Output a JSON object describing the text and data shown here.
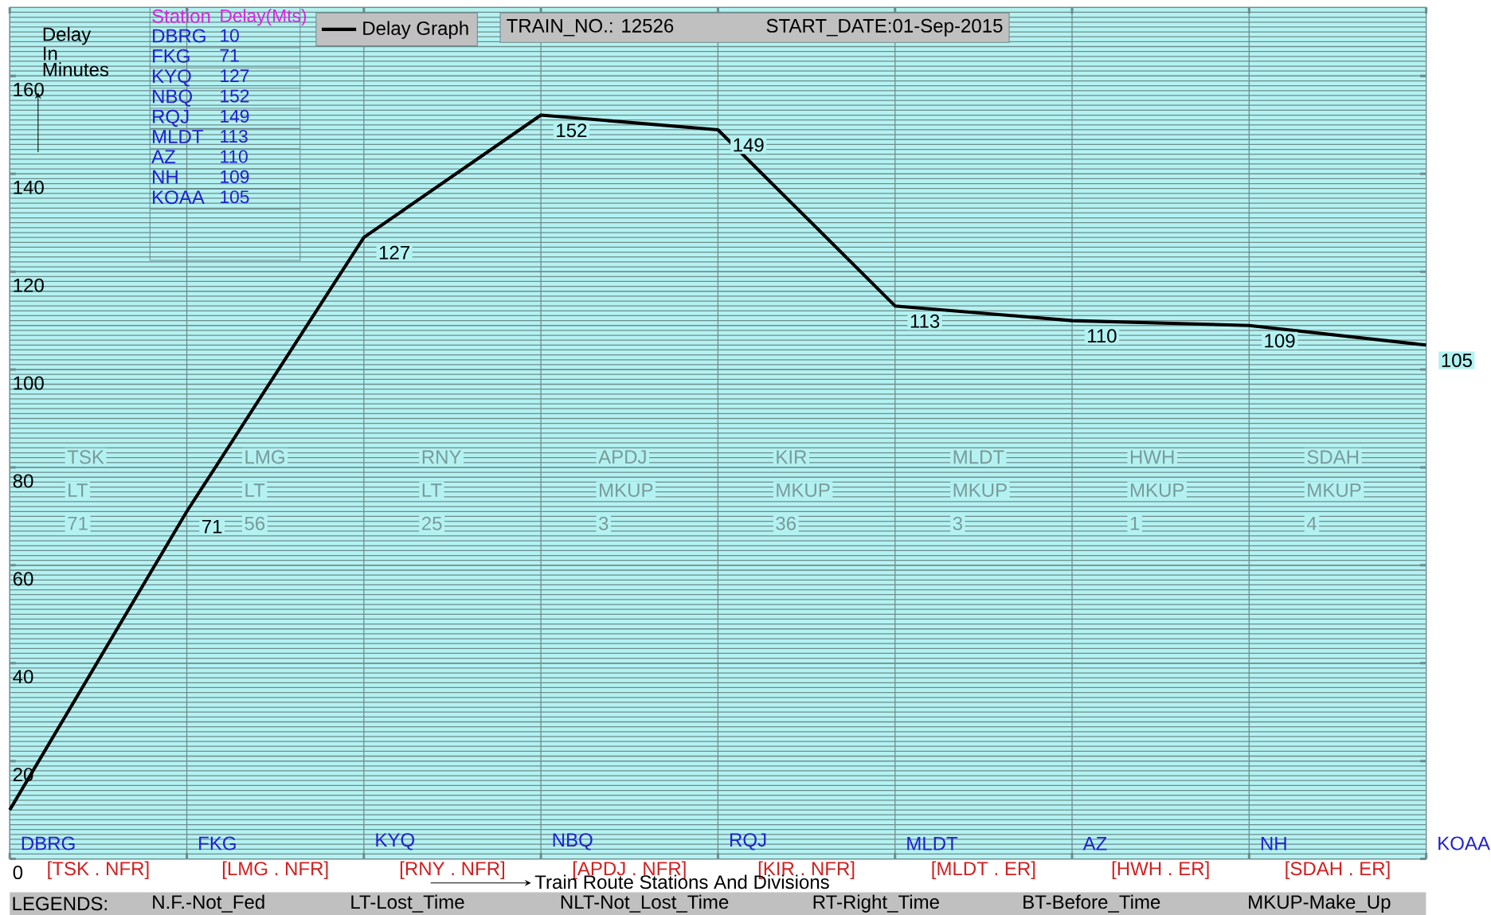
{
  "chart_data": {
    "type": "line",
    "title": "TRAIN_NO.: 12526",
    "subtitle": "START_DATE:01-Sep-2015",
    "ylabel": "Delay In Minutes",
    "xlabel": "Train Route Stations And Divisions",
    "categories": [
      "DBRG",
      "FKG",
      "KYQ",
      "NBQ",
      "RQJ",
      "MLDT",
      "AZ",
      "NH",
      "KOAA"
    ],
    "series": [
      {
        "name": "Delay Graph",
        "color": "#000000",
        "values": [
          10,
          71,
          127,
          152,
          149,
          113,
          110,
          109,
          105
        ],
        "value_labels": [
          null,
          "71",
          "127",
          "152",
          "149",
          "113",
          "110",
          "109",
          "105"
        ]
      }
    ],
    "ylim": [
      0,
      174
    ],
    "yticks": [
      0,
      20,
      40,
      60,
      80,
      100,
      120,
      140,
      160
    ],
    "grid": true,
    "legend": "top",
    "marker": "none",
    "line_style": "solid",
    "annotations": [
      "Station",
      "Delay(Mts)",
      "DBRG",
      "10",
      "FKG",
      "71",
      "KYQ",
      "127",
      "NBQ",
      "152",
      "RQJ",
      "149",
      "MLDT",
      "113",
      "AZ",
      "110",
      "NH",
      "109",
      "KOAA",
      "105",
      "[TSK . NFR]",
      "[LMG . NFR]",
      "[RNY . NFR]",
      "[APDJ . NFR]",
      "[KIR . NFR]",
      "[MLDT . ER]",
      "[HWH . ER]",
      "[SDAH . ER]",
      "TSK",
      "LT",
      "71",
      "LMG",
      "LT",
      "56",
      "RNY",
      "LT",
      "25",
      "APDJ",
      "MKUP",
      "3",
      "KIR",
      "MKUP",
      "36",
      "MLDT",
      "MKUP",
      "3",
      "HWH",
      "MKUP",
      "1",
      "SDAH",
      "MKUP",
      "4",
      "LEGENDS:",
      "N.F.-Not_Fed",
      "LT-Lost_Time",
      "NLT-Not_Lost_Time",
      "RT-Right_Time",
      "BT-Before_Time",
      "MKUP-Make_Up"
    ]
  }
}
